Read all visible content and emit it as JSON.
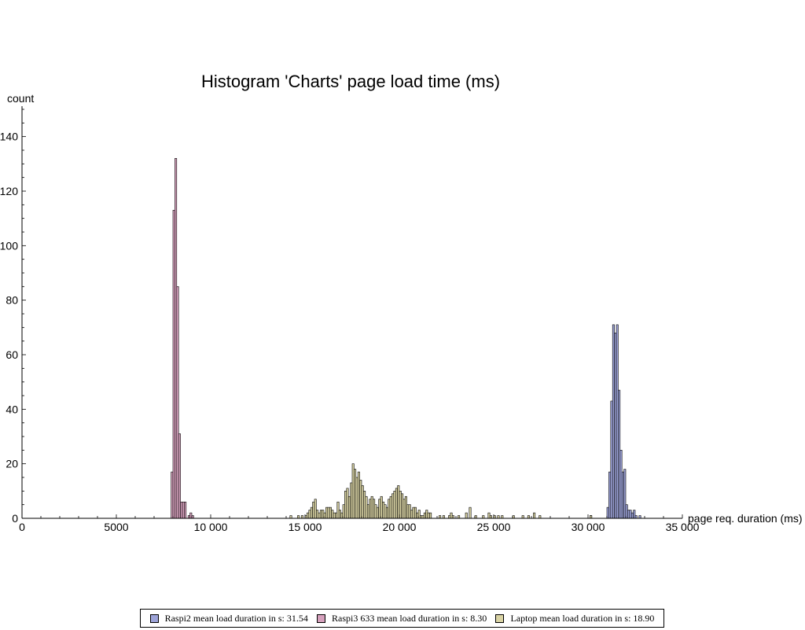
{
  "chart_data": {
    "type": "bar",
    "title": "Histogram 'Charts' page load time (ms)",
    "xlabel": "page req. duration (ms)",
    "ylabel": "count",
    "xlim": [
      0,
      35000
    ],
    "ylim": [
      0,
      150
    ],
    "x_ticks": [
      0,
      5000,
      10000,
      15000,
      20000,
      25000,
      30000,
      35000
    ],
    "x_tick_labels": [
      "0",
      "5000",
      "10 000",
      "15 000",
      "20 000",
      "25 000",
      "30 000",
      "35 000"
    ],
    "y_ticks": [
      0,
      20,
      40,
      60,
      80,
      100,
      120,
      140
    ],
    "y_tick_labels": [
      "0",
      "20",
      "40",
      "60",
      "80",
      "100",
      "120",
      "140"
    ],
    "bin_width": 100,
    "grid": false,
    "legend_position": "bottom",
    "series": [
      {
        "name": "Raspi2 mean load duration in s: 31.54",
        "color": "#9da3d8",
        "bins": [
          [
            30100,
            1
          ],
          [
            31000,
            4
          ],
          [
            31100,
            17
          ],
          [
            31200,
            43
          ],
          [
            31300,
            71
          ],
          [
            31400,
            68
          ],
          [
            31500,
            71
          ],
          [
            31600,
            47
          ],
          [
            31700,
            25
          ],
          [
            31800,
            17
          ],
          [
            31900,
            18
          ],
          [
            32000,
            5
          ],
          [
            32100,
            3
          ],
          [
            32200,
            3
          ],
          [
            32300,
            2
          ],
          [
            32400,
            3
          ],
          [
            32500,
            1
          ],
          [
            32700,
            1
          ]
        ]
      },
      {
        "name": "Raspi3 633 mean load duration in s: 8.30",
        "color": "#d6a1bd",
        "bins": [
          [
            7900,
            17
          ],
          [
            8000,
            113
          ],
          [
            8100,
            132
          ],
          [
            8200,
            85
          ],
          [
            8300,
            31
          ],
          [
            8400,
            6
          ],
          [
            8500,
            6
          ],
          [
            8600,
            6
          ],
          [
            8800,
            1
          ],
          [
            8900,
            2
          ],
          [
            9000,
            1
          ]
        ]
      },
      {
        "name": "Laptop mean load duration in s: 18.90",
        "color": "#d9d3a4",
        "bins": [
          [
            14200,
            1
          ],
          [
            14600,
            1
          ],
          [
            14800,
            1
          ],
          [
            15000,
            1
          ],
          [
            15100,
            2
          ],
          [
            15200,
            3
          ],
          [
            15300,
            4
          ],
          [
            15400,
            6
          ],
          [
            15500,
            7
          ],
          [
            15600,
            3
          ],
          [
            15700,
            2
          ],
          [
            15800,
            3
          ],
          [
            15900,
            3
          ],
          [
            16000,
            2
          ],
          [
            16100,
            4
          ],
          [
            16200,
            4
          ],
          [
            16300,
            4
          ],
          [
            16400,
            3
          ],
          [
            16500,
            2
          ],
          [
            16600,
            2
          ],
          [
            16700,
            6
          ],
          [
            16800,
            3
          ],
          [
            16900,
            2
          ],
          [
            17000,
            5
          ],
          [
            17100,
            10
          ],
          [
            17200,
            11
          ],
          [
            17300,
            8
          ],
          [
            17400,
            13
          ],
          [
            17500,
            20
          ],
          [
            17600,
            18
          ],
          [
            17700,
            15
          ],
          [
            17800,
            17
          ],
          [
            17900,
            14
          ],
          [
            18000,
            12
          ],
          [
            18100,
            10
          ],
          [
            18200,
            8
          ],
          [
            18300,
            5
          ],
          [
            18400,
            7
          ],
          [
            18500,
            8
          ],
          [
            18600,
            7
          ],
          [
            18700,
            5
          ],
          [
            18800,
            4
          ],
          [
            18900,
            7
          ],
          [
            19000,
            8
          ],
          [
            19100,
            6
          ],
          [
            19200,
            5
          ],
          [
            19300,
            4
          ],
          [
            19400,
            7
          ],
          [
            19500,
            8
          ],
          [
            19600,
            9
          ],
          [
            19700,
            10
          ],
          [
            19800,
            11
          ],
          [
            19900,
            12
          ],
          [
            20000,
            10
          ],
          [
            20100,
            9
          ],
          [
            20200,
            7
          ],
          [
            20300,
            8
          ],
          [
            20400,
            5
          ],
          [
            20500,
            5
          ],
          [
            20600,
            3
          ],
          [
            20700,
            4
          ],
          [
            20800,
            4
          ],
          [
            20900,
            2
          ],
          [
            21000,
            3
          ],
          [
            21100,
            1
          ],
          [
            21200,
            1
          ],
          [
            21300,
            2
          ],
          [
            21400,
            3
          ],
          [
            21500,
            2
          ],
          [
            21600,
            2
          ],
          [
            22100,
            1
          ],
          [
            22300,
            1
          ],
          [
            22600,
            1
          ],
          [
            22700,
            2
          ],
          [
            22800,
            1
          ],
          [
            23100,
            1
          ],
          [
            23500,
            2
          ],
          [
            23700,
            4
          ],
          [
            24000,
            1
          ],
          [
            24400,
            1
          ],
          [
            24700,
            2
          ],
          [
            24800,
            1
          ],
          [
            25000,
            1
          ],
          [
            25200,
            1
          ],
          [
            25400,
            1
          ],
          [
            26000,
            1
          ],
          [
            26500,
            1
          ],
          [
            26800,
            1
          ],
          [
            27100,
            2
          ],
          [
            27400,
            1
          ],
          [
            30100,
            1
          ]
        ]
      }
    ]
  }
}
